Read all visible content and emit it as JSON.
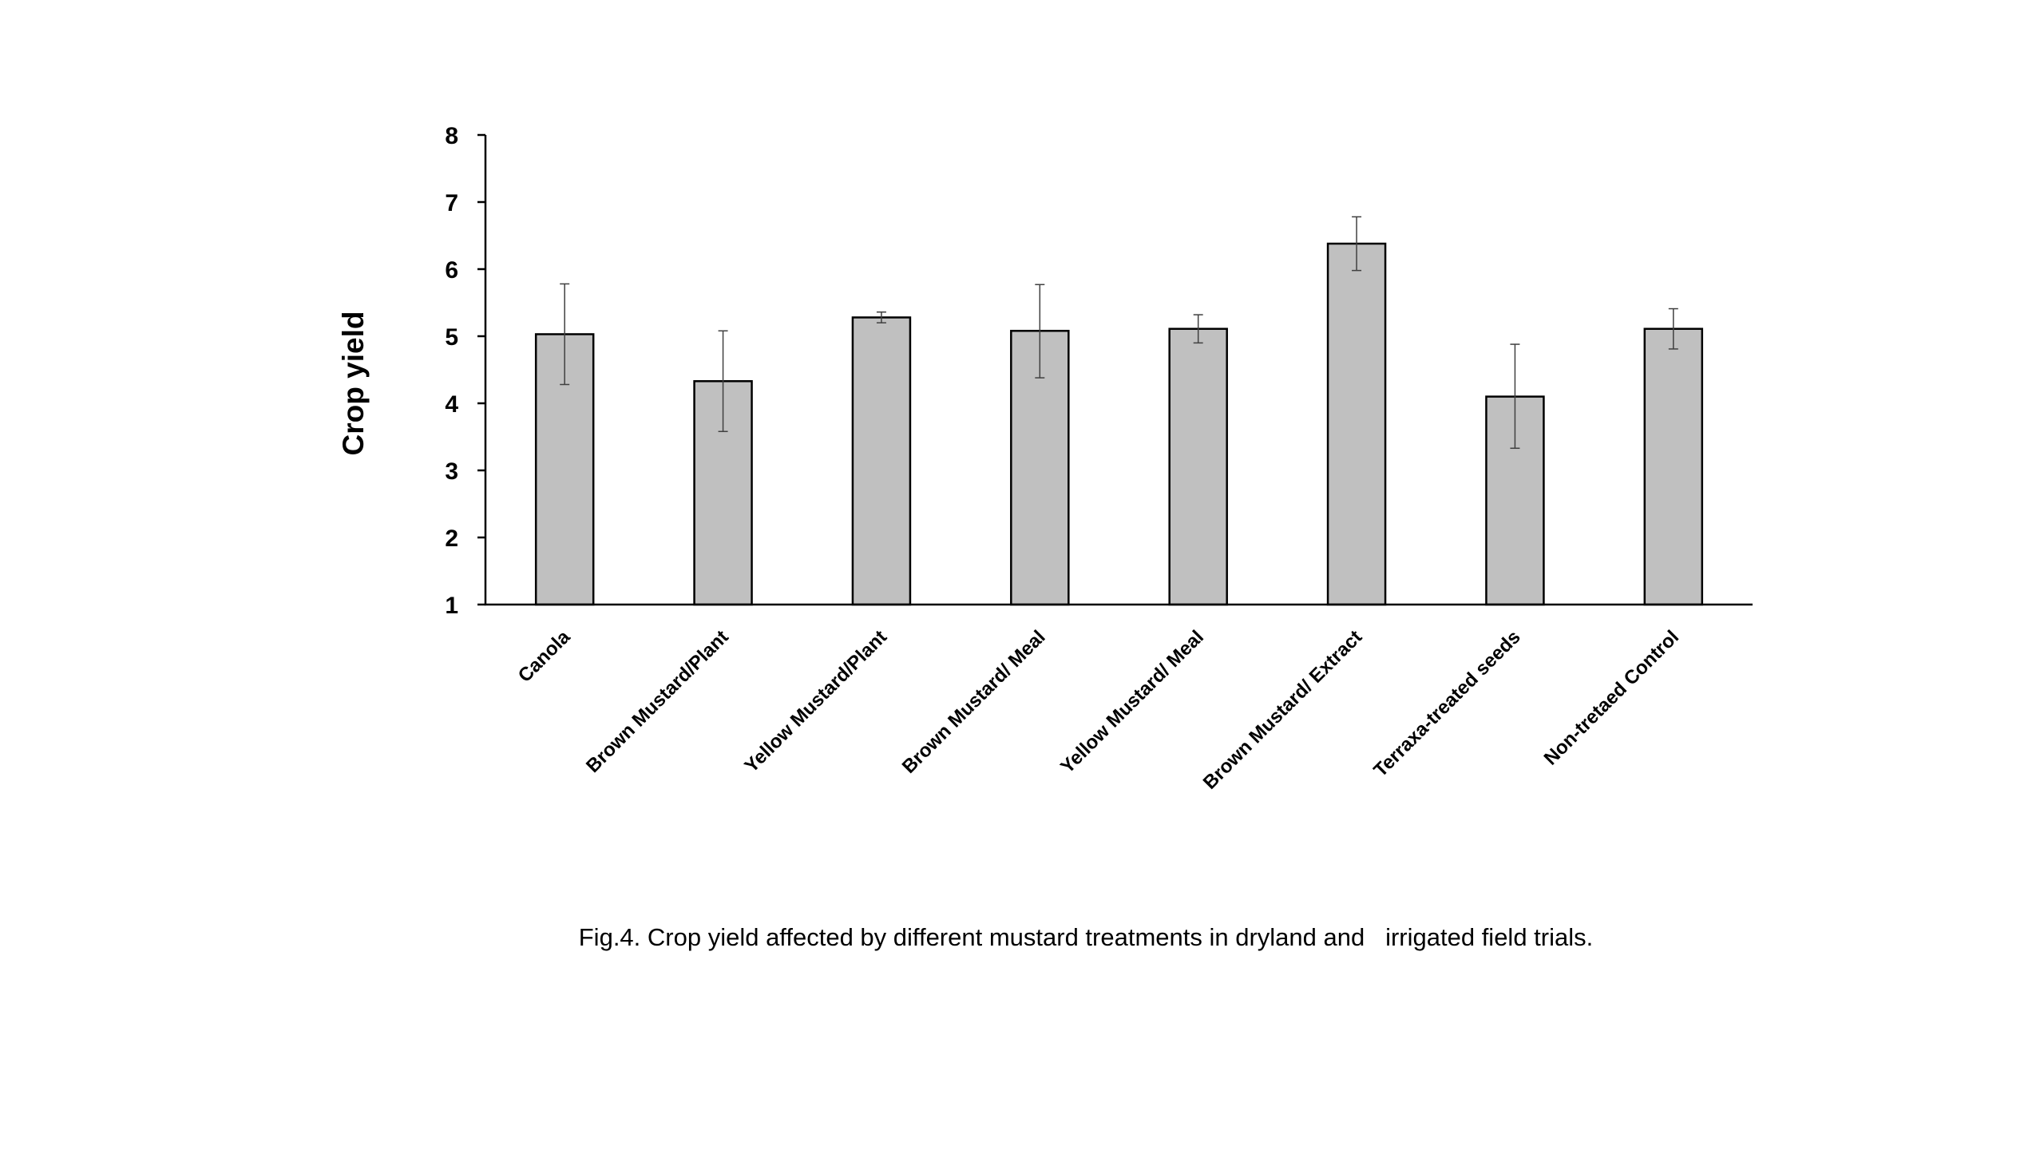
{
  "chart_data": {
    "type": "bar",
    "title": "",
    "xlabel": "",
    "ylabel": "Crop yield",
    "ylim": [
      1,
      8
    ],
    "yticks": [
      1,
      2,
      3,
      4,
      5,
      6,
      7,
      8
    ],
    "grid": false,
    "legend": "none",
    "categories": [
      "Canola",
      "Brown Mustard/Plant",
      "Yellow Mustard/Plant",
      "Brown Mustard/ Meal",
      "Yellow Mustard/ Meal",
      "Brown Mustard/ Extract",
      "Terraxa-treated seeds",
      "Non-tretaed Control"
    ],
    "values": [
      5.03,
      4.33,
      5.28,
      5.08,
      5.11,
      6.38,
      4.1,
      5.11
    ],
    "error_low": [
      4.28,
      3.58,
      5.2,
      4.38,
      4.9,
      5.98,
      3.33,
      4.81
    ],
    "error_high": [
      5.78,
      5.08,
      5.36,
      5.77,
      5.32,
      6.78,
      4.88,
      5.41
    ],
    "colors": {
      "bar_fill": "#c0c0c0",
      "bar_stroke": "#000000",
      "axis": "#000000",
      "error_bar": "#404040"
    }
  },
  "caption": "Fig.4. Crop yield affected by different mustard treatments in dryland and   irrigated field trials."
}
